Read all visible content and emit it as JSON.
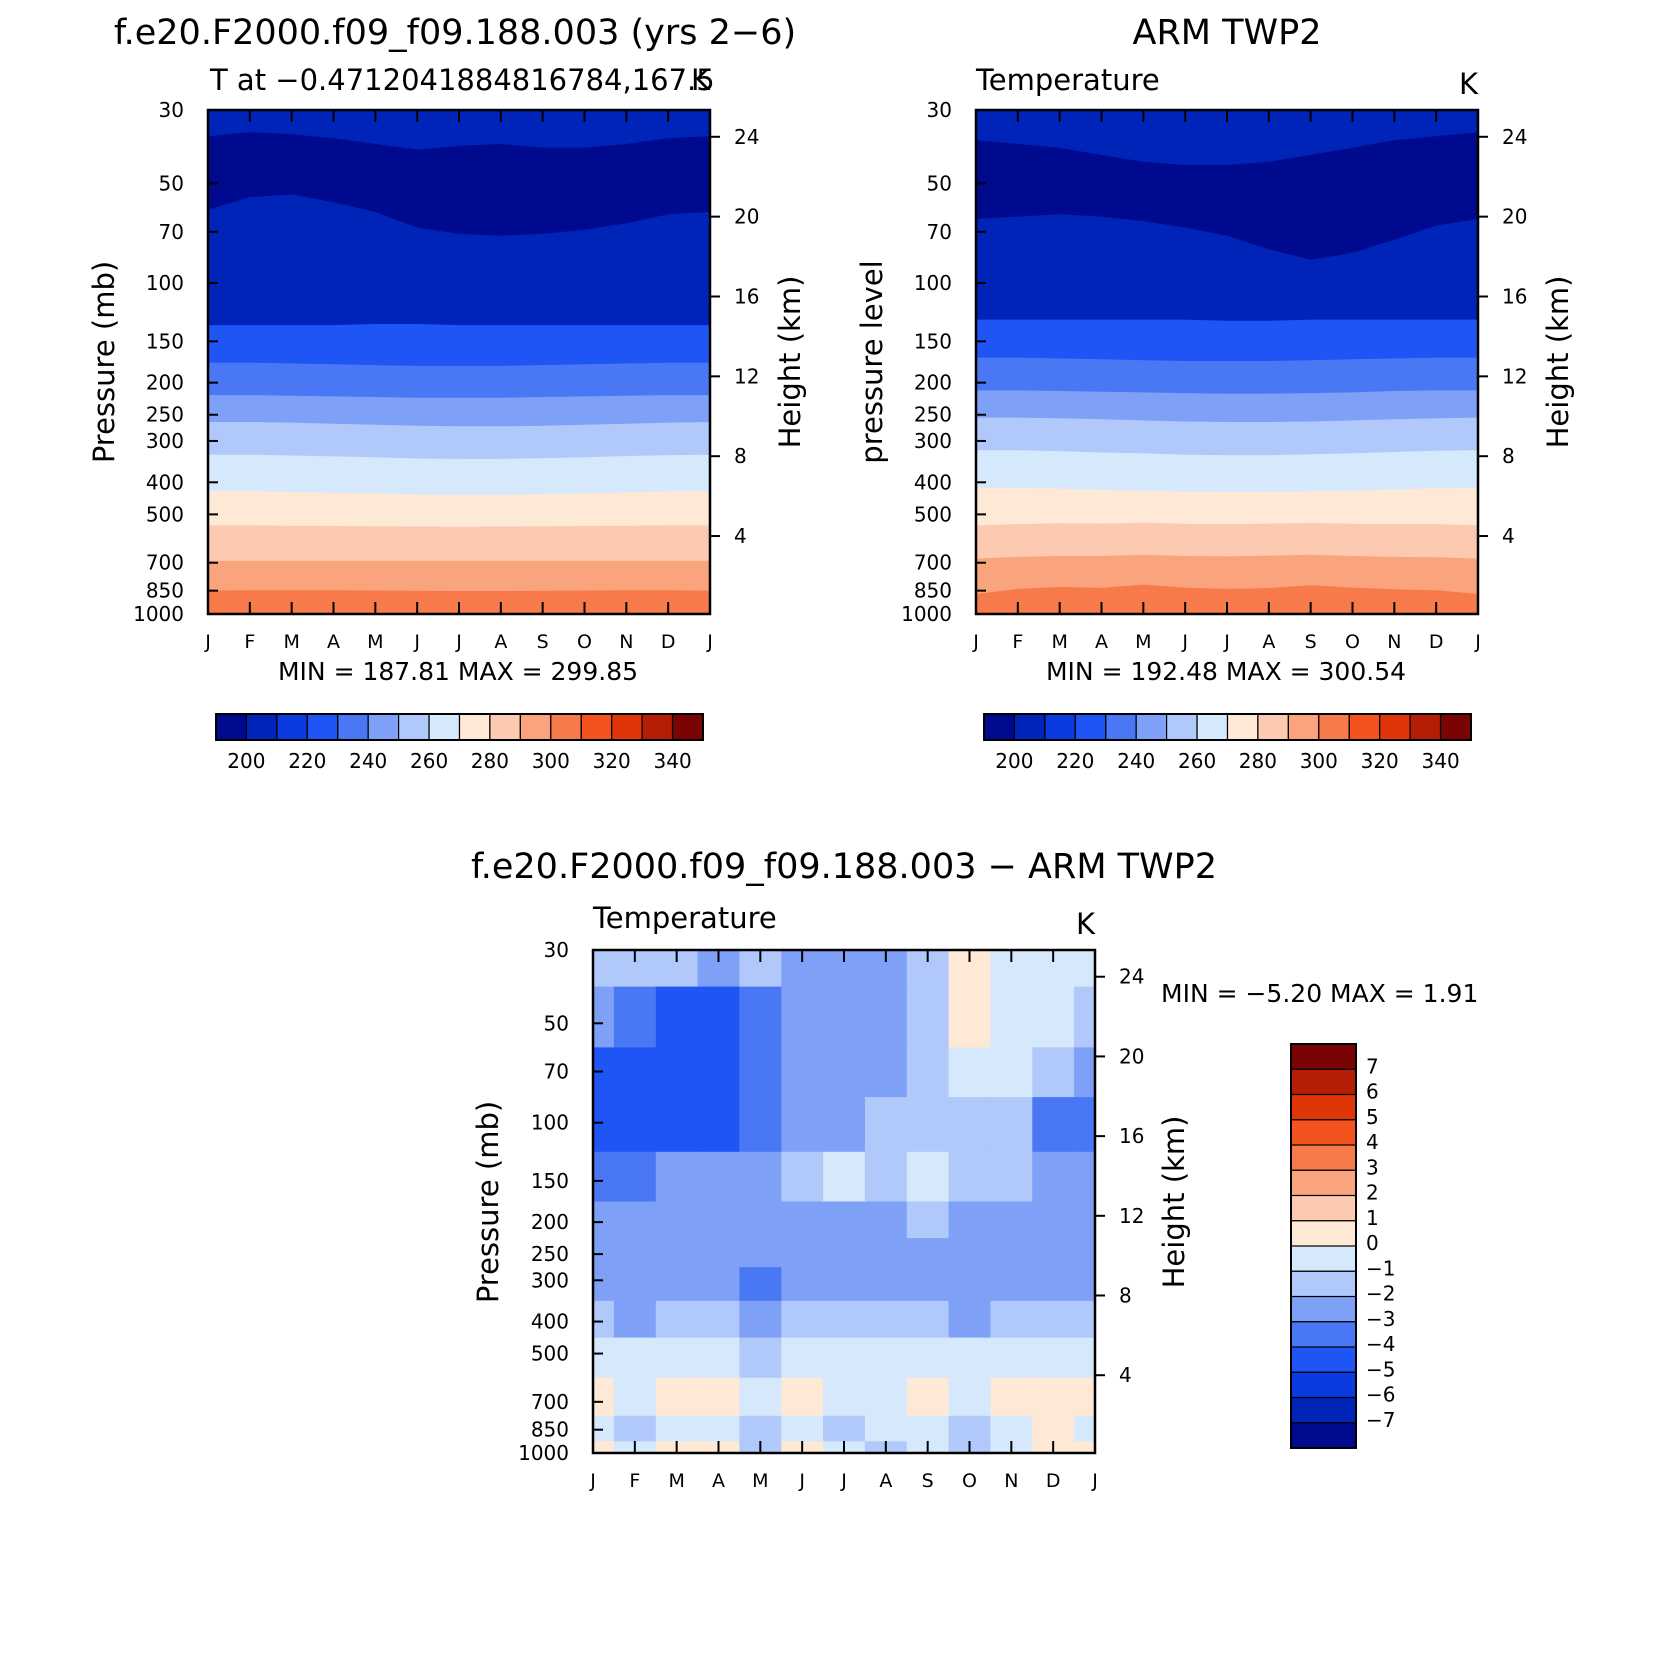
{
  "chart_data": [
    {
      "type": "heatmap",
      "title": "f.e20.F2000.f09_f09.188.003 (yrs 2−6)",
      "subtitle": "T at −0.4712041884816784,167.5",
      "units": "K",
      "ylabel": "Pressure (mb)",
      "ylabel_right": "Height (km)",
      "x_ticks": [
        "J",
        "F",
        "M",
        "A",
        "M",
        "J",
        "J",
        "A",
        "S",
        "O",
        "N",
        "D",
        "J"
      ],
      "y_ticks": [
        "30",
        "50",
        "70",
        "100",
        "150",
        "200",
        "250",
        "300",
        "400",
        "500",
        "700",
        "850",
        "1000"
      ],
      "y_right_ticks": [
        "24",
        "20",
        "16",
        "12",
        "8",
        "4"
      ],
      "y_scale": "log-pressure",
      "stats": "MIN = 187.81 MAX = 299.85",
      "min": 187.81,
      "max": 299.85,
      "levels": [
        200,
        210,
        220,
        230,
        240,
        250,
        260,
        270,
        280,
        290,
        300,
        310,
        320,
        330,
        340
      ],
      "colorbar_labels": [
        "200",
        "220",
        "240",
        "260",
        "280",
        "300",
        "320",
        "340"
      ],
      "colorbar_orientation": "horizontal",
      "band_boundaries_mb": [
        {
          "level": 200,
          "values": [
            60,
            55,
            54,
            57,
            61,
            68,
            71,
            72,
            71,
            69,
            66,
            62,
            61
          ]
        },
        {
          "level": 210,
          "values": [
            36,
            35,
            35.5,
            36.5,
            38,
            39.5,
            38.5,
            38,
            39,
            39,
            38,
            36.5,
            36
          ]
        },
        {
          "level": 220,
          "values": [
            134,
            134,
            134,
            134,
            133,
            133,
            134,
            134,
            134,
            134,
            134,
            134,
            134
          ]
        },
        {
          "level": 230,
          "values": [
            174,
            174,
            175,
            176,
            177,
            178,
            178,
            178,
            177,
            176,
            175,
            174,
            174
          ]
        },
        {
          "level": 240,
          "values": [
            218,
            218,
            219,
            220,
            221,
            222,
            222,
            222,
            221,
            220,
            219,
            218,
            218
          ]
        },
        {
          "level": 250,
          "values": [
            263,
            263,
            264,
            266,
            268,
            270,
            271,
            271,
            270,
            268,
            266,
            264,
            263
          ]
        },
        {
          "level": 260,
          "values": [
            330,
            330,
            332,
            334,
            336,
            339,
            340,
            340,
            338,
            336,
            333,
            331,
            330
          ]
        },
        {
          "level": 270,
          "values": [
            425,
            425,
            428,
            430,
            432,
            435,
            436,
            436,
            434,
            432,
            429,
            426,
            425
          ]
        },
        {
          "level": 280,
          "values": [
            540,
            540,
            541,
            542,
            543,
            544,
            545,
            544,
            543,
            542,
            541,
            540,
            540
          ]
        },
        {
          "level": 290,
          "values": [
            690,
            690,
            690,
            690,
            690,
            690,
            690,
            690,
            690,
            690,
            690,
            690,
            690
          ]
        },
        {
          "level": 300,
          "values": [
            850,
            848,
            848,
            848,
            849,
            851,
            852,
            852,
            851,
            849,
            848,
            848,
            850
          ]
        }
      ]
    },
    {
      "type": "heatmap",
      "title": "ARM TWP2",
      "subtitle": "Temperature",
      "units": "K",
      "ylabel": "pressure level",
      "ylabel_right": "Height (km)",
      "x_ticks": [
        "J",
        "F",
        "M",
        "A",
        "M",
        "J",
        "J",
        "A",
        "S",
        "O",
        "N",
        "D",
        "J"
      ],
      "y_ticks": [
        "30",
        "50",
        "70",
        "100",
        "150",
        "200",
        "250",
        "300",
        "400",
        "500",
        "700",
        "850",
        "1000"
      ],
      "y_right_ticks": [
        "24",
        "20",
        "16",
        "12",
        "8",
        "4"
      ],
      "y_scale": "log-pressure",
      "stats": "MIN = 192.48 MAX = 300.54",
      "min": 192.48,
      "max": 300.54,
      "levels": [
        200,
        210,
        220,
        230,
        240,
        250,
        260,
        270,
        280,
        290,
        300,
        310,
        320,
        330,
        340
      ],
      "colorbar_labels": [
        "200",
        "220",
        "240",
        "260",
        "280",
        "300",
        "320",
        "340"
      ],
      "colorbar_orientation": "horizontal",
      "band_boundaries_mb": [
        {
          "level": 200,
          "values": [
            64,
            63,
            62,
            63,
            65,
            68,
            72,
            79,
            85,
            81,
            74,
            67,
            64
          ]
        },
        {
          "level": 210,
          "values": [
            37,
            38,
            39,
            41,
            43,
            44,
            44,
            43,
            41,
            39,
            37,
            36,
            35
          ]
        },
        {
          "level": 220,
          "values": [
            129,
            129,
            129,
            129,
            129,
            129,
            130,
            130,
            129,
            129,
            129,
            129,
            129
          ]
        },
        {
          "level": 230,
          "values": [
            168,
            168,
            169,
            170,
            171,
            172,
            172,
            172,
            171,
            170,
            169,
            168,
            168
          ]
        },
        {
          "level": 240,
          "values": [
            211,
            211,
            212,
            213,
            214,
            215,
            216,
            216,
            215,
            214,
            212,
            211,
            211
          ]
        },
        {
          "level": 250,
          "values": [
            255,
            255,
            256,
            258,
            260,
            262,
            263,
            263,
            262,
            260,
            258,
            256,
            255
          ]
        },
        {
          "level": 260,
          "values": [
            320,
            320,
            322,
            325,
            327,
            330,
            331,
            331,
            329,
            327,
            324,
            321,
            320
          ]
        },
        {
          "level": 270,
          "values": [
            415,
            415,
            418,
            421,
            424,
            427,
            428,
            428,
            426,
            424,
            420,
            417,
            415
          ]
        },
        {
          "level": 280,
          "values": [
            540,
            535,
            532,
            533,
            530,
            534,
            535,
            533,
            531,
            534,
            535,
            535,
            540
          ]
        },
        {
          "level": 290,
          "values": [
            680,
            672,
            668,
            668,
            662,
            668,
            670,
            666,
            662,
            668,
            672,
            674,
            680
          ]
        },
        {
          "level": 300,
          "values": [
            870,
            840,
            828,
            834,
            815,
            832,
            840,
            835,
            818,
            832,
            842,
            848,
            870
          ]
        }
      ]
    },
    {
      "type": "heatmap",
      "title": "f.e20.F2000.f09_f09.188.003 − ARM TWP2",
      "subtitle": "Temperature",
      "units": "K",
      "ylabel": "Pressure (mb)",
      "ylabel_right": "Height (km)",
      "x_ticks": [
        "J",
        "F",
        "M",
        "A",
        "M",
        "J",
        "J",
        "A",
        "S",
        "O",
        "N",
        "D",
        "J"
      ],
      "y_ticks": [
        "30",
        "50",
        "70",
        "100",
        "150",
        "200",
        "250",
        "300",
        "400",
        "500",
        "700",
        "850",
        "1000"
      ],
      "y_right_ticks": [
        "24",
        "20",
        "16",
        "12",
        "8",
        "4"
      ],
      "y_scale": "log-pressure",
      "stats": "MIN = −5.20 MAX = 1.91",
      "min": -5.2,
      "max": 1.91,
      "levels": [
        -7,
        -6,
        -5,
        -4,
        -3,
        -2,
        -1,
        0,
        1,
        2,
        3,
        4,
        5,
        6,
        7
      ],
      "colorbar_labels": [
        "7",
        "6",
        "5",
        "4",
        "3",
        "2",
        "1",
        "0",
        "−1",
        "−2",
        "−3",
        "−4",
        "−5",
        "−6",
        "−7"
      ],
      "colorbar_orientation": "vertical",
      "grid_months": [
        0,
        1,
        2,
        3,
        4,
        5,
        6,
        7,
        8,
        9,
        10,
        11,
        12
      ],
      "grid_pressure_mb": [
        30,
        50,
        70,
        100,
        150,
        200,
        250,
        300,
        400,
        500,
        700,
        850,
        1000
      ],
      "grid_values": [
        [
          -1.8,
          -1.2,
          -1.7,
          -2.2,
          -1.8,
          -2.1,
          -2.6,
          -2.4,
          -1.3,
          0.4,
          -0.6,
          -0.6,
          -0.8
        ],
        [
          -2.9,
          -3.8,
          -4.3,
          -4.5,
          -3.7,
          -2.6,
          -2.3,
          -2.3,
          -1.4,
          0.3,
          -0.7,
          -0.8,
          -1.2
        ],
        [
          -4.2,
          -4.6,
          -4.9,
          -4.6,
          -3.5,
          -2.5,
          -2.3,
          -2.3,
          -1.7,
          -0.6,
          -0.9,
          -1.8,
          -2.4
        ],
        [
          -4.6,
          -4.7,
          -4.5,
          -4.3,
          -3.3,
          -2.7,
          -2.4,
          -1.9,
          -1.6,
          -1.6,
          -1.7,
          -3.4,
          -3.6
        ],
        [
          -3.2,
          -3.1,
          -2.9,
          -2.7,
          -2.3,
          -1.6,
          -0.9,
          -1.6,
          -0.9,
          -1.6,
          -1.7,
          -2.4,
          -2.2
        ],
        [
          -2.3,
          -2.7,
          -2.8,
          -2.7,
          -2.6,
          -2.3,
          -2.2,
          -2.2,
          -1.8,
          -2.1,
          -2.3,
          -2.4,
          -2.3
        ],
        [
          -2.3,
          -2.6,
          -2.7,
          -2.7,
          -2.8,
          -2.5,
          -2.4,
          -2.4,
          -2.2,
          -2.4,
          -2.4,
          -2.4,
          -2.3
        ],
        [
          -2.2,
          -2.4,
          -2.6,
          -2.7,
          -3.4,
          -2.6,
          -2.5,
          -2.5,
          -2.3,
          -2.5,
          -2.4,
          -2.3,
          -2.2
        ],
        [
          -1.7,
          -2.1,
          -2.0,
          -1.9,
          -2.2,
          -1.8,
          -1.8,
          -1.9,
          -1.9,
          -2.1,
          -1.8,
          -1.6,
          -1.6
        ],
        [
          -0.6,
          -0.9,
          -0.9,
          -0.8,
          -1.1,
          -0.8,
          -0.8,
          -0.9,
          -0.9,
          -0.9,
          -0.8,
          -0.7,
          -0.6
        ],
        [
          0.3,
          -0.2,
          0.3,
          0.2,
          -0.2,
          0.4,
          -0.2,
          -0.2,
          0.4,
          -0.3,
          0.3,
          0.4,
          0.5
        ],
        [
          -0.2,
          -1.1,
          -0.2,
          -0.3,
          -1.2,
          -0.2,
          -1.1,
          -0.2,
          -0.2,
          -1.1,
          -0.2,
          0.1,
          -0.3
        ],
        [
          0.5,
          -0.3,
          0.4,
          0.3,
          -1.1,
          0.1,
          -0.2,
          -1.2,
          -0.2,
          -1.1,
          -0.2,
          0.3,
          0.6
        ]
      ]
    }
  ]
}
